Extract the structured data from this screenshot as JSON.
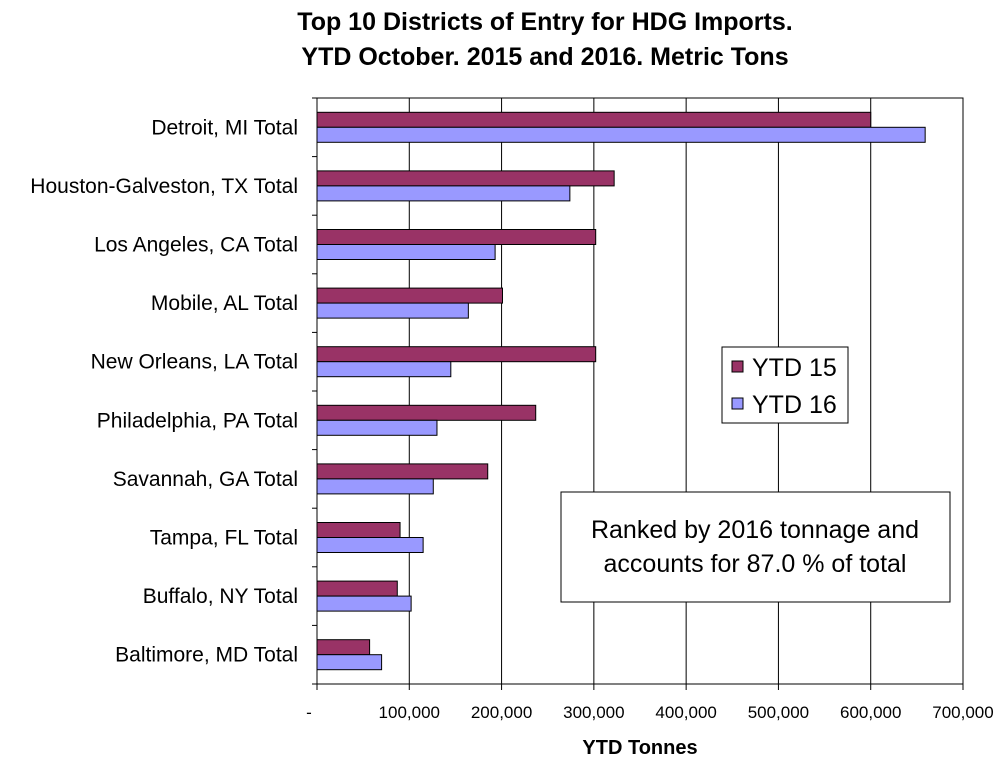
{
  "chart_data": {
    "type": "bar",
    "orientation": "horizontal",
    "title": [
      "Top 10 Districts of Entry for HDG Imports.",
      "YTD October. 2015 and 2016. Metric Tons"
    ],
    "xlabel": "YTD Tonnes",
    "ylabel": "",
    "xlim": [
      0,
      700000
    ],
    "xticks": [
      0,
      100000,
      200000,
      300000,
      400000,
      500000,
      600000,
      700000
    ],
    "xtick_labels": [
      "-",
      "100,000",
      "200,000",
      "300,000",
      "400,000",
      "500,000",
      "600,000",
      "700,000"
    ],
    "grid": true,
    "categories": [
      "Detroit, MI  Total",
      "Houston-Galveston, TX  Total",
      "Los Angeles, CA  Total",
      "Mobile, AL  Total",
      "New Orleans, LA  Total",
      "Philadelphia, PA  Total",
      "Savannah, GA  Total",
      "Tampa, FL  Total",
      "Buffalo, NY  Total",
      "Baltimore, MD  Total"
    ],
    "series": [
      {
        "name": "YTD 15",
        "color": "#993366",
        "values": [
          600000,
          322000,
          302000,
          201000,
          302000,
          237000,
          185000,
          90000,
          87000,
          57000
        ]
      },
      {
        "name": "YTD 16",
        "color": "#9999FF",
        "values": [
          659000,
          274000,
          193000,
          164000,
          145000,
          130000,
          126000,
          115000,
          102000,
          70000
        ]
      }
    ],
    "legend_position": "right",
    "annotation": [
      "Ranked by 2016 tonnage and",
      "accounts for 87.0 % of total"
    ]
  }
}
